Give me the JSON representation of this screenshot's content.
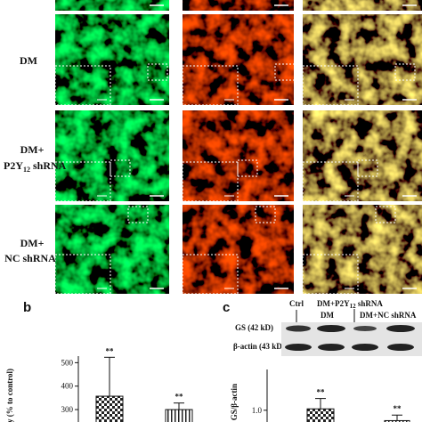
{
  "row_labels": {
    "dm": "DM",
    "p2y_top": "DM+",
    "p2y_main": "P2Y",
    "p2y_sub": "12",
    "p2y_tail": " shRNA",
    "nc_top": "DM+",
    "nc_bottom": "NC shRNA"
  },
  "panel_letters": {
    "b": "b",
    "c": "c"
  },
  "blot": {
    "ctrl": "Ctrl",
    "p2y_main": "DM+P2Y",
    "p2y_sub": "12",
    "p2y_tail": " shRNA",
    "dm": "DM",
    "nc": "DM+NC shRNA",
    "gs": "GS (42 kD)",
    "actin": "β-actin (43 kD)"
  },
  "chart_data": [
    {
      "type": "bar",
      "y_label": "sity (% to control)",
      "categories": [
        null,
        null
      ],
      "values": [
        357,
        300
      ],
      "errors": [
        166,
        28
      ],
      "annotations": [
        "**",
        "**"
      ],
      "ylim": [
        247,
        528
      ],
      "yticks": [
        300,
        400,
        500
      ]
    },
    {
      "type": "bar",
      "y_label": "of GS/β-actin",
      "categories": [
        null,
        null
      ],
      "values": [
        1.02,
        0.85
      ],
      "errors": [
        0.15,
        0.08
      ],
      "annotations": [
        "**",
        "**"
      ],
      "ylim": [
        0.83,
        1.59
      ],
      "yticks": [
        {
          "value": 1.0,
          "label": "1.0"
        }
      ]
    }
  ]
}
